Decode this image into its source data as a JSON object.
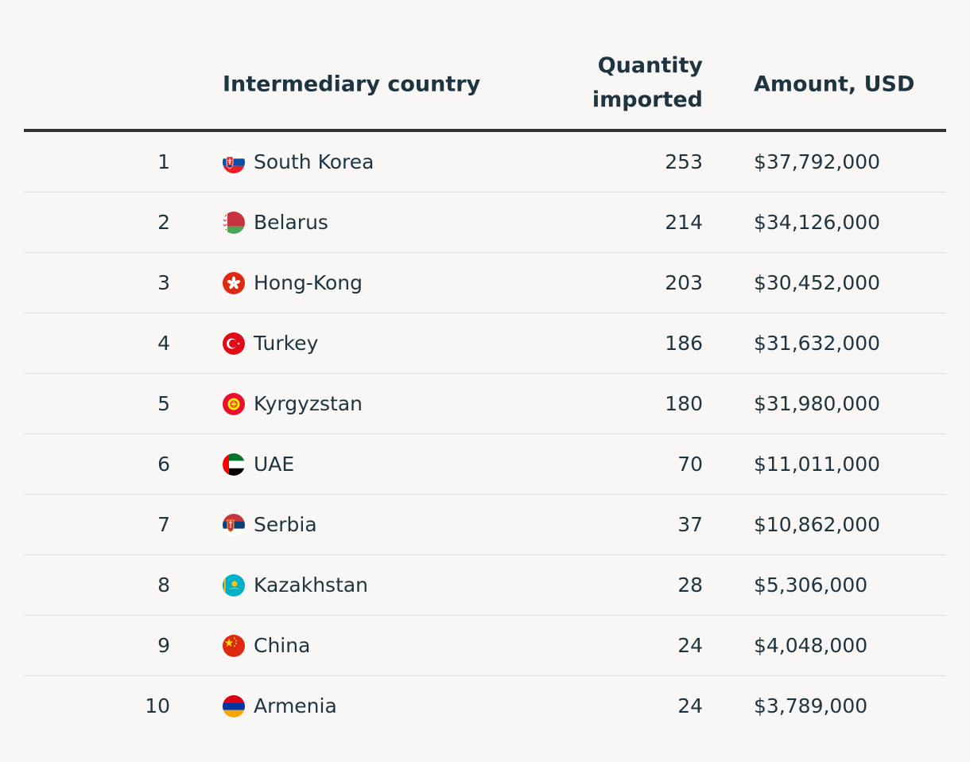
{
  "headers": {
    "rank": "",
    "country": "Intermediary country",
    "quantity_line1": "Quantity",
    "quantity_line2": "imported",
    "amount": "Amount, USD"
  },
  "rows": [
    {
      "rank": "1",
      "country": "South Korea",
      "flag_icon": "slovakia-flag-icon",
      "quantity": "253",
      "amount": "$37,792,000"
    },
    {
      "rank": "2",
      "country": "Belarus",
      "flag_icon": "belarus-flag-icon",
      "quantity": "214",
      "amount": "$34,126,000"
    },
    {
      "rank": "3",
      "country": "Hong-Kong",
      "flag_icon": "hong-kong-flag-icon",
      "quantity": "203",
      "amount": "$30,452,000"
    },
    {
      "rank": "4",
      "country": "Turkey",
      "flag_icon": "turkey-flag-icon",
      "quantity": "186",
      "amount": "$31,632,000"
    },
    {
      "rank": "5",
      "country": "Kyrgyzstan",
      "flag_icon": "kyrgyzstan-flag-icon",
      "quantity": "180",
      "amount": "$31,980,000"
    },
    {
      "rank": "6",
      "country": "UAE",
      "flag_icon": "uae-flag-icon",
      "quantity": "70",
      "amount": "$11,011,000"
    },
    {
      "rank": "7",
      "country": "Serbia",
      "flag_icon": "serbia-flag-icon",
      "quantity": "37",
      "amount": "$10,862,000"
    },
    {
      "rank": "8",
      "country": "Kazakhstan",
      "flag_icon": "kazakhstan-flag-icon",
      "quantity": "28",
      "amount": "$5,306,000"
    },
    {
      "rank": "9",
      "country": "China",
      "flag_icon": "china-flag-icon",
      "quantity": "24",
      "amount": "$4,048,000"
    },
    {
      "rank": "10",
      "country": "Armenia",
      "flag_icon": "armenia-flag-icon",
      "quantity": "24",
      "amount": "$3,789,000"
    }
  ],
  "colors": {
    "text": "#1e3441",
    "background": "#f8f7f5",
    "header_rule": "#333333",
    "row_rule": "#dcdad7"
  },
  "chart_data": {
    "type": "table",
    "columns": [
      "",
      "Intermediary country",
      "Quantity imported",
      "Amount, USD"
    ],
    "rows": [
      [
        1,
        "South Korea",
        253,
        37792000
      ],
      [
        2,
        "Belarus",
        214,
        34126000
      ],
      [
        3,
        "Hong-Kong",
        203,
        30452000
      ],
      [
        4,
        "Turkey",
        186,
        31632000
      ],
      [
        5,
        "Kyrgyzstan",
        180,
        31980000
      ],
      [
        6,
        "UAE",
        70,
        11011000
      ],
      [
        7,
        "Serbia",
        37,
        10862000
      ],
      [
        8,
        "Kazakhstan",
        28,
        5306000
      ],
      [
        9,
        "China",
        24,
        4048000
      ],
      [
        10,
        "Armenia",
        24,
        3789000
      ]
    ]
  }
}
